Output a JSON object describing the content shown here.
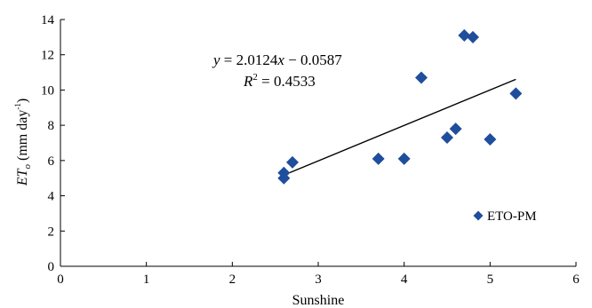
{
  "chart_data": {
    "type": "scatter",
    "xlabel": "Sunshine",
    "ylabel": {
      "main": "ET",
      "sub": "o",
      "unit_open": " (mm day",
      "unit_sup": "-1",
      "unit_close": ")"
    },
    "xlim": [
      0,
      6
    ],
    "ylim": [
      0,
      14
    ],
    "xticks": [
      0,
      1,
      2,
      3,
      4,
      5,
      6
    ],
    "yticks": [
      0,
      2,
      4,
      6,
      8,
      10,
      12,
      14
    ],
    "grid": false,
    "legend_position": "lower-right",
    "series": [
      {
        "name": "ETO-PM",
        "marker": "diamond",
        "color": "#1f4e9c",
        "points": [
          {
            "x": 2.6,
            "y": 5.0
          },
          {
            "x": 2.6,
            "y": 5.3
          },
          {
            "x": 2.7,
            "y": 5.9
          },
          {
            "x": 3.7,
            "y": 6.1
          },
          {
            "x": 4.0,
            "y": 6.1
          },
          {
            "x": 4.2,
            "y": 10.7
          },
          {
            "x": 4.5,
            "y": 7.3
          },
          {
            "x": 4.6,
            "y": 7.8
          },
          {
            "x": 4.7,
            "y": 13.1
          },
          {
            "x": 4.8,
            "y": 13.0
          },
          {
            "x": 5.0,
            "y": 7.2
          },
          {
            "x": 5.3,
            "y": 9.8
          }
        ]
      }
    ],
    "trendline": {
      "slope": 2.0124,
      "intercept": -0.0587,
      "x_range": [
        2.6,
        5.3
      ],
      "color": "#000000"
    },
    "annotations": {
      "equation": {
        "y": "y",
        "eq": " = 2.0124",
        "x": "x",
        "rest": " − 0.0587"
      },
      "r2": {
        "r": "R",
        "sup": "2",
        "rest": " = 0.4533"
      }
    }
  }
}
